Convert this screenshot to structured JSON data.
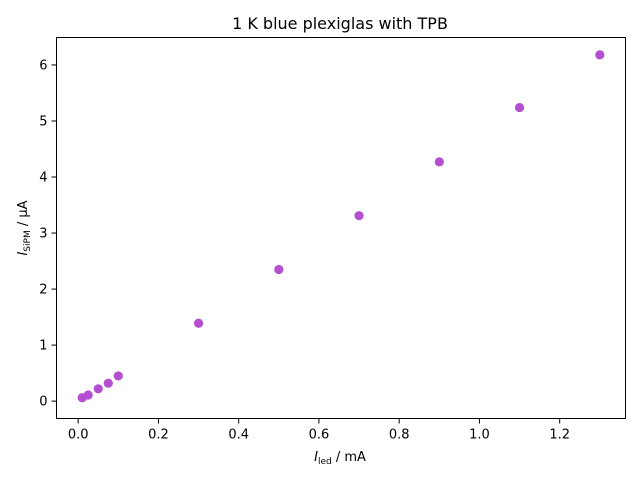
{
  "chart_data": {
    "type": "scatter",
    "title": "1 K blue plexiglas with TPB",
    "xlabel": {
      "main": "I",
      "sub": "led",
      "unit": " / mA"
    },
    "ylabel": {
      "main": "I",
      "sub": "SiPM",
      "unit": " / μA"
    },
    "xlim": [
      -0.054,
      1.364
    ],
    "ylim": [
      -0.31,
      6.49
    ],
    "xticks": [
      0.0,
      0.2,
      0.4,
      0.6,
      0.8,
      1.0,
      1.2
    ],
    "xtick_labels": [
      "0.0",
      "0.2",
      "0.4",
      "0.6",
      "0.8",
      "1.0",
      "1.2"
    ],
    "yticks": [
      0,
      1,
      2,
      3,
      4,
      5,
      6
    ],
    "ytick_labels": [
      "0",
      "1",
      "2",
      "3",
      "4",
      "5",
      "6"
    ],
    "grid": false,
    "marker_color": "#b44fd1",
    "points": [
      {
        "x": 0.01,
        "y": 0.06
      },
      {
        "x": 0.025,
        "y": 0.11
      },
      {
        "x": 0.05,
        "y": 0.22
      },
      {
        "x": 0.075,
        "y": 0.32
      },
      {
        "x": 0.1,
        "y": 0.45
      },
      {
        "x": 0.3,
        "y": 1.39
      },
      {
        "x": 0.5,
        "y": 2.35
      },
      {
        "x": 0.7,
        "y": 3.31
      },
      {
        "x": 0.9,
        "y": 4.27
      },
      {
        "x": 1.1,
        "y": 5.24
      },
      {
        "x": 1.3,
        "y": 6.18
      }
    ]
  }
}
